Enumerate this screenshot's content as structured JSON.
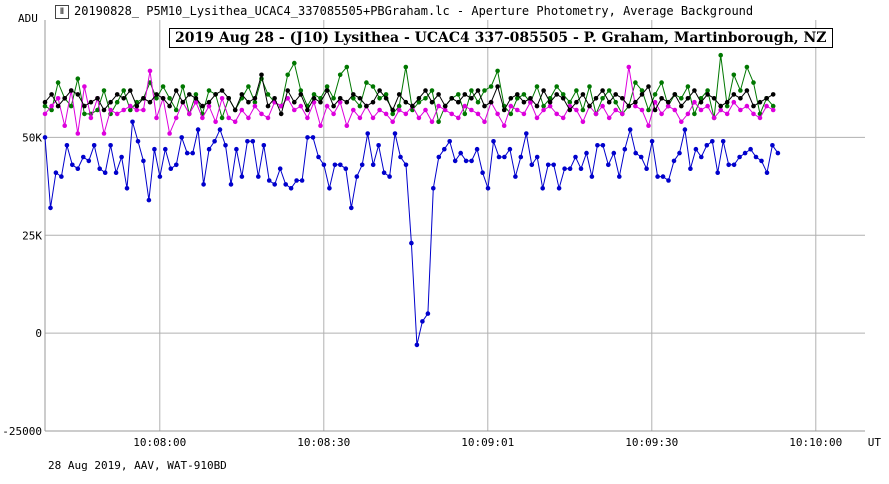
{
  "window": {
    "icon": "chart-icon",
    "title": "20190828_ P5M10_Lysithea_UCAC4_337085505+PBGraham.lc - Aperture Photometry, Average Background"
  },
  "chart_data": {
    "type": "line",
    "title": "2019 Aug 28 - (J10) Lysithea - UCAC4 337-085505 - P. Graham, Martinborough, NZ",
    "ylabel": "ADU",
    "xlabel": "UT",
    "footer": "28 Aug 2019, AAV, WAT-910BD",
    "ylim": [
      -25000,
      80000
    ],
    "xlim": [
      0,
      100
    ],
    "grid": true,
    "y_ticks": [
      {
        "value": 50000,
        "label": "50K"
      },
      {
        "value": 25000,
        "label": "25K"
      },
      {
        "value": 0,
        "label": "0"
      },
      {
        "value": -25000,
        "label": "-25000"
      }
    ],
    "x_ticks": [
      {
        "value": 14,
        "label": "10:08:00"
      },
      {
        "value": 34,
        "label": "10:08:30"
      },
      {
        "value": 54,
        "label": "10:09:01"
      },
      {
        "value": 74,
        "label": "10:09:30"
      },
      {
        "value": 94,
        "label": "10:10:00"
      }
    ],
    "series": [
      {
        "color": "#0000cc",
        "x_start": 0,
        "x_step": 0.667,
        "values": [
          50000,
          32000,
          41000,
          40000,
          48000,
          43000,
          42000,
          45000,
          44000,
          48000,
          42000,
          41000,
          48000,
          41000,
          45000,
          37000,
          54000,
          49000,
          44000,
          34000,
          47000,
          40000,
          47000,
          42000,
          43000,
          50000,
          46000,
          46000,
          52000,
          38000,
          47000,
          49000,
          52000,
          48000,
          38000,
          47000,
          40000,
          49000,
          49000,
          40000,
          48000,
          39000,
          38000,
          42000,
          38000,
          37000,
          39000,
          39000,
          50000,
          50000,
          45000,
          43000,
          37000,
          43000,
          43000,
          42000,
          32000,
          40000,
          43000,
          51000,
          43000,
          48000,
          41000,
          40000,
          51000,
          45000,
          43000,
          23000,
          -3000,
          3000,
          5000,
          37000,
          45000,
          47000,
          49000,
          44000,
          46000,
          44000,
          44000,
          47000,
          41000,
          37000,
          49000,
          45000,
          45000,
          47000,
          40000,
          45000,
          51000,
          43000,
          45000,
          37000,
          43000,
          43000,
          37000,
          42000,
          42000,
          45000,
          42000,
          46000,
          40000,
          48000,
          48000,
          43000,
          46000,
          40000,
          47000,
          52000,
          46000,
          45000,
          42000,
          49000,
          40000,
          40000,
          39000,
          44000,
          46000,
          52000,
          42000,
          47000,
          45000,
          48000,
          49000,
          41000,
          49000,
          43000,
          43000,
          45000,
          46000,
          47000,
          45000,
          44000,
          41000,
          48000,
          46000
        ]
      },
      {
        "color": "#007700",
        "x_start": 0,
        "x_step": 0.8,
        "values": [
          58000,
          57000,
          64000,
          60000,
          58000,
          65000,
          56000,
          56000,
          57000,
          62000,
          56000,
          59000,
          62000,
          57000,
          59000,
          60000,
          64000,
          60000,
          63000,
          60000,
          57000,
          63000,
          56000,
          61000,
          56000,
          62000,
          61000,
          55000,
          60000,
          57000,
          60000,
          63000,
          59000,
          65000,
          61000,
          59000,
          58000,
          66000,
          69000,
          62000,
          58000,
          61000,
          60000,
          63000,
          60000,
          66000,
          68000,
          60000,
          58000,
          64000,
          63000,
          60000,
          61000,
          56000,
          58000,
          68000,
          57000,
          59000,
          60000,
          62000,
          54000,
          58000,
          60000,
          61000,
          56000,
          62000,
          59000,
          62000,
          63000,
          67000,
          58000,
          56000,
          60000,
          61000,
          59000,
          63000,
          58000,
          60000,
          63000,
          61000,
          59000,
          62000,
          57000,
          63000,
          56000,
          60000,
          62000,
          59000,
          56000,
          58000,
          64000,
          62000,
          57000,
          61000,
          64000,
          58000,
          61000,
          60000,
          63000,
          56000,
          60000,
          62000,
          55000,
          71000,
          58000,
          66000,
          62000,
          68000,
          64000,
          56000,
          60000,
          58000
        ]
      },
      {
        "color": "#dd00dd",
        "x_start": 0,
        "x_step": 0.8,
        "values": [
          56000,
          58000,
          60000,
          53000,
          62000,
          51000,
          63000,
          55000,
          60000,
          51000,
          57000,
          56000,
          57000,
          58000,
          57000,
          57000,
          67000,
          55000,
          60000,
          51000,
          55000,
          59000,
          56000,
          59000,
          55000,
          58000,
          54000,
          60000,
          55000,
          54000,
          57000,
          55000,
          58000,
          56000,
          55000,
          59000,
          58000,
          60000,
          57000,
          58000,
          55000,
          59000,
          53000,
          58000,
          56000,
          59000,
          53000,
          57000,
          55000,
          58000,
          55000,
          57000,
          56000,
          54000,
          57000,
          56000,
          58000,
          55000,
          57000,
          54000,
          58000,
          57000,
          56000,
          55000,
          58000,
          57000,
          56000,
          54000,
          59000,
          56000,
          53000,
          58000,
          57000,
          56000,
          59000,
          55000,
          57000,
          58000,
          56000,
          55000,
          58000,
          57000,
          54000,
          58000,
          56000,
          58000,
          55000,
          57000,
          56000,
          68000,
          58000,
          57000,
          53000,
          59000,
          56000,
          58000,
          57000,
          54000,
          56000,
          59000,
          57000,
          58000,
          55000,
          57000,
          56000,
          59000,
          57000,
          58000,
          56000,
          55000,
          58000,
          57000
        ]
      },
      {
        "color": "#000000",
        "x_start": 0,
        "x_step": 0.8,
        "values": [
          59000,
          61000,
          58000,
          60000,
          62000,
          61000,
          58000,
          59000,
          60000,
          57000,
          59000,
          61000,
          60000,
          62000,
          58000,
          60000,
          59000,
          61000,
          60000,
          58000,
          62000,
          59000,
          61000,
          60000,
          58000,
          59000,
          61000,
          62000,
          60000,
          57000,
          61000,
          59000,
          60000,
          66000,
          58000,
          60000,
          56000,
          62000,
          59000,
          61000,
          57000,
          60000,
          59000,
          62000,
          58000,
          60000,
          59000,
          61000,
          60000,
          58000,
          59000,
          62000,
          60000,
          57000,
          61000,
          59000,
          58000,
          60000,
          62000,
          59000,
          61000,
          58000,
          60000,
          59000,
          61000,
          60000,
          62000,
          58000,
          59000,
          63000,
          57000,
          60000,
          61000,
          59000,
          60000,
          58000,
          62000,
          59000,
          61000,
          60000,
          57000,
          59000,
          61000,
          58000,
          60000,
          62000,
          59000,
          61000,
          60000,
          58000,
          59000,
          61000,
          63000,
          57000,
          60000,
          59000,
          61000,
          58000,
          60000,
          62000,
          59000,
          61000,
          60000,
          58000,
          59000,
          61000,
          60000,
          62000,
          58000,
          59000,
          60000,
          61000
        ]
      }
    ]
  }
}
